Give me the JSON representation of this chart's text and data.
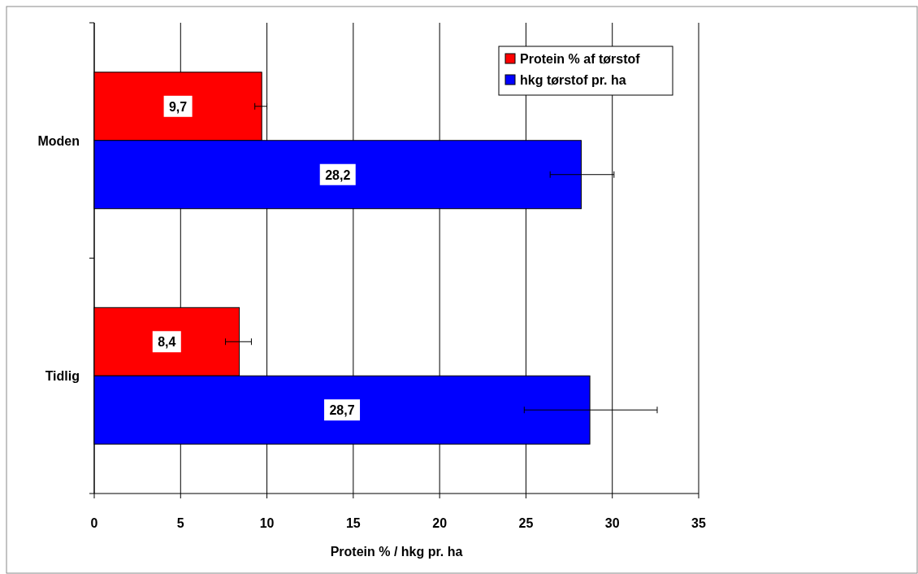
{
  "chart_data": {
    "type": "bar",
    "orientation": "horizontal",
    "categories": [
      "Moden",
      "Tidlig"
    ],
    "xlabel": "Protein % / hkg pr. ha",
    "xlim": [
      0,
      35
    ],
    "xticks": [
      0,
      5,
      10,
      15,
      20,
      25,
      30,
      35
    ],
    "grid": "x",
    "legend": "top right",
    "series": [
      {
        "name": "Protein % af tørstof",
        "color": "#ff0000",
        "values": [
          9.7,
          8.4
        ],
        "value_labels": [
          "9,7",
          "8,4"
        ],
        "errors": [
          [
            9.3,
            10.0
          ],
          [
            7.6,
            9.1
          ]
        ]
      },
      {
        "name": "hkg tørstof pr. ha",
        "color": "#0000ff",
        "values": [
          28.2,
          28.7
        ],
        "value_labels": [
          "28,2",
          "28,7"
        ],
        "errors": [
          [
            26.4,
            30.1
          ],
          [
            24.9,
            32.6
          ]
        ]
      }
    ]
  }
}
